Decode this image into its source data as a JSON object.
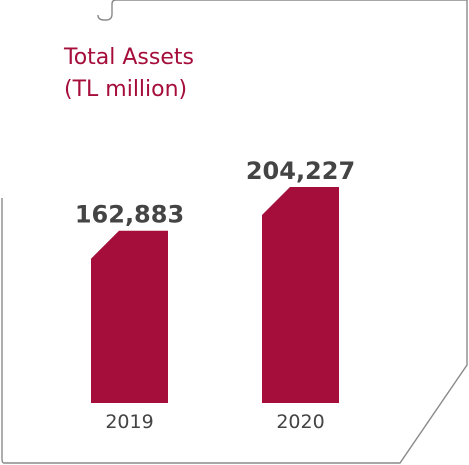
{
  "chart_data": {
    "type": "bar",
    "title": "Total Assets",
    "subtitle": "(TL million)",
    "categories": [
      "2019",
      "2020"
    ],
    "values": [
      162883,
      204227
    ],
    "value_labels": [
      "162,883",
      "204,227"
    ],
    "xlabel": "",
    "ylabel": "",
    "ylim": [
      0,
      204227
    ],
    "grid": false,
    "legend": "none",
    "bar_color": "#a50d3a",
    "label_color": "#444444",
    "tick_color": "#444444"
  }
}
